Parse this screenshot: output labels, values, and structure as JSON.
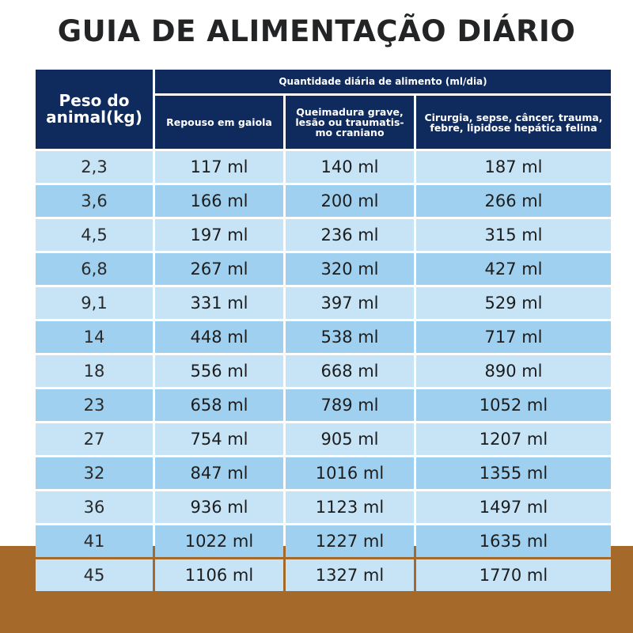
{
  "title": "GUIA DE ALIMENTAÇÃO DIÁRIO",
  "table": {
    "weight_header": "Peso do animal(kg)",
    "group_header": "Quantidade diária de alimento (ml/dia)",
    "sub_headers": [
      "Repouso em gaiola",
      "Queimadura grave, lesão ou traumatis-mo craniano",
      "Cirurgia, sepse, câncer, trauma, febre, lipidose hepática felina"
    ],
    "rows": [
      {
        "weight": "2,3",
        "rest": "117 ml",
        "burn": "140 ml",
        "surgery": "187 ml"
      },
      {
        "weight": "3,6",
        "rest": "166 ml",
        "burn": "200 ml",
        "surgery": "266 ml"
      },
      {
        "weight": "4,5",
        "rest": "197 ml",
        "burn": "236 ml",
        "surgery": "315 ml"
      },
      {
        "weight": "6,8",
        "rest": "267 ml",
        "burn": "320 ml",
        "surgery": "427 ml"
      },
      {
        "weight": "9,1",
        "rest": "331 ml",
        "burn": "397 ml",
        "surgery": "529 ml"
      },
      {
        "weight": "14",
        "rest": "448 ml",
        "burn": "538 ml",
        "surgery": "717 ml"
      },
      {
        "weight": "18",
        "rest": "556 ml",
        "burn": "668 ml",
        "surgery": "890 ml"
      },
      {
        "weight": "23",
        "rest": "658 ml",
        "burn": "789 ml",
        "surgery": "1052 ml"
      },
      {
        "weight": "27",
        "rest": "754 ml",
        "burn": "905 ml",
        "surgery": "1207 ml"
      },
      {
        "weight": "32",
        "rest": "847 ml",
        "burn": "1016 ml",
        "surgery": "1355 ml"
      },
      {
        "weight": "36",
        "rest": "936 ml",
        "burn": "1123 ml",
        "surgery": "1497 ml"
      },
      {
        "weight": "41",
        "rest": "1022 ml",
        "burn": "1227 ml",
        "surgery": "1635 ml"
      },
      {
        "weight": "45",
        "rest": "1106 ml",
        "burn": "1327 ml",
        "surgery": "1770 ml"
      }
    ]
  },
  "colors": {
    "header_navy": "#0f2a5c",
    "row_light": "#c7e4f6",
    "row_dark": "#9fd0ef",
    "band_brown": "#a5692a"
  }
}
